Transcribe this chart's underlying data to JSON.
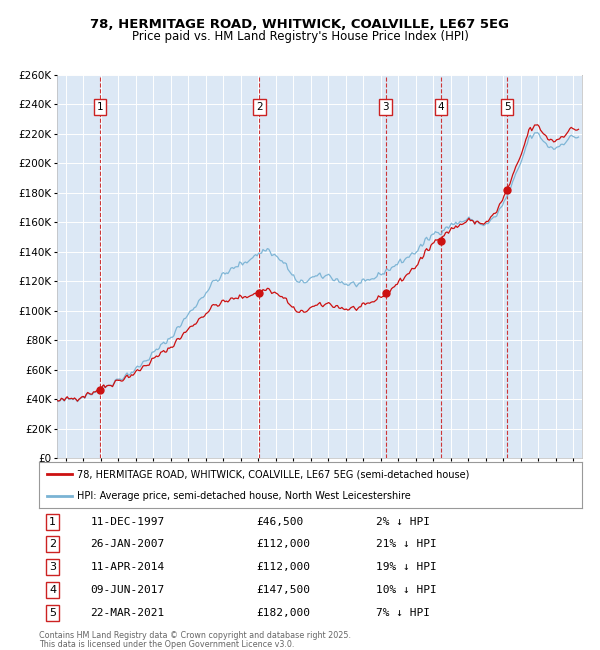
{
  "title": "78, HERMITAGE ROAD, WHITWICK, COALVILLE, LE67 5EG",
  "subtitle": "Price paid vs. HM Land Registry's House Price Index (HPI)",
  "legend_property": "78, HERMITAGE ROAD, WHITWICK, COALVILLE, LE67 5EG (semi-detached house)",
  "legend_hpi": "HPI: Average price, semi-detached house, North West Leicestershire",
  "footer_line1": "Contains HM Land Registry data © Crown copyright and database right 2025.",
  "footer_line2": "This data is licensed under the Open Government Licence v3.0.",
  "transactions": [
    {
      "num": 1,
      "date": "11-DEC-1997",
      "price": 46500,
      "pct": "2%",
      "year_x": 1997.95
    },
    {
      "num": 2,
      "date": "26-JAN-2007",
      "price": 112000,
      "pct": "21%",
      "year_x": 2007.07
    },
    {
      "num": 3,
      "date": "11-APR-2014",
      "price": 112000,
      "pct": "19%",
      "year_x": 2014.28
    },
    {
      "num": 4,
      "date": "09-JUN-2017",
      "price": 147500,
      "pct": "10%",
      "year_x": 2017.44
    },
    {
      "num": 5,
      "date": "22-MAR-2021",
      "price": 182000,
      "pct": "7%",
      "year_x": 2021.22
    }
  ],
  "hpi_color": "#7ab3d4",
  "price_color": "#cc1111",
  "vline_color": "#cc2222",
  "bg_color": "#dce8f5",
  "plot_bg": "#ffffff",
  "grid_color": "#ffffff",
  "ylim": [
    0,
    260000
  ],
  "xlim_start": 1995.5,
  "xlim_end": 2025.5,
  "ytick_step": 20000
}
